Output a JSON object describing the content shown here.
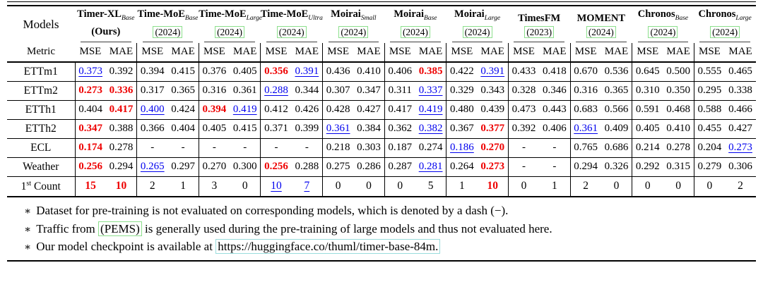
{
  "colors": {
    "best": "#EE0000",
    "second": "#0000EE",
    "cite_box": "#8CDF8C",
    "url_box": "#9ADCDC"
  },
  "table": {
    "models_label": "Models",
    "metric_label": "Metric",
    "metrics": [
      "MSE",
      "MAE"
    ],
    "columns": [
      {
        "name": "Timer-XL",
        "sub": "Base",
        "year": "(Ours)",
        "boxed": false,
        "year_bold": true
      },
      {
        "name": "Time-MoE",
        "sub": "Base",
        "year": "(2024)",
        "boxed": true,
        "year_bold": false
      },
      {
        "name": "Time-MoE",
        "sub": "Large",
        "year": "(2024)",
        "boxed": true,
        "year_bold": false
      },
      {
        "name": "Time-MoE",
        "sub": "Ultra",
        "year": "(2024)",
        "boxed": true,
        "year_bold": false
      },
      {
        "name": "Moirai",
        "sub": "Small",
        "year": "(2024)",
        "boxed": true,
        "year_bold": false
      },
      {
        "name": "Moirai",
        "sub": "Base",
        "year": "(2024)",
        "boxed": true,
        "year_bold": false
      },
      {
        "name": "Moirai",
        "sub": "Large",
        "year": "(2024)",
        "boxed": true,
        "year_bold": false
      },
      {
        "name": "TimesFM",
        "sub": "",
        "year": "(2023)",
        "boxed": true,
        "year_bold": false
      },
      {
        "name": "MOMENT",
        "sub": "",
        "year": "(2024)",
        "boxed": true,
        "year_bold": false
      },
      {
        "name": "Chronos",
        "sub": "Base",
        "year": "(2024)",
        "boxed": true,
        "year_bold": false
      },
      {
        "name": "Chronos",
        "sub": "Large",
        "year": "(2024)",
        "boxed": true,
        "year_bold": false
      }
    ],
    "rows": [
      {
        "label": "ETTm1",
        "cells": [
          [
            "0.373",
            "second"
          ],
          [
            "0.392",
            ""
          ],
          [
            "0.394",
            ""
          ],
          [
            "0.415",
            ""
          ],
          [
            "0.376",
            ""
          ],
          [
            "0.405",
            ""
          ],
          [
            "0.356",
            "best"
          ],
          [
            "0.391",
            "second"
          ],
          [
            "0.436",
            ""
          ],
          [
            "0.410",
            ""
          ],
          [
            "0.406",
            ""
          ],
          [
            "0.385",
            "best"
          ],
          [
            "0.422",
            ""
          ],
          [
            "0.391",
            "second"
          ],
          [
            "0.433",
            ""
          ],
          [
            "0.418",
            ""
          ],
          [
            "0.670",
            ""
          ],
          [
            "0.536",
            ""
          ],
          [
            "0.645",
            ""
          ],
          [
            "0.500",
            ""
          ],
          [
            "0.555",
            ""
          ],
          [
            "0.465",
            ""
          ]
        ]
      },
      {
        "label": "ETTm2",
        "cells": [
          [
            "0.273",
            "best"
          ],
          [
            "0.336",
            "best"
          ],
          [
            "0.317",
            ""
          ],
          [
            "0.365",
            ""
          ],
          [
            "0.316",
            ""
          ],
          [
            "0.361",
            ""
          ],
          [
            "0.288",
            "second"
          ],
          [
            "0.344",
            ""
          ],
          [
            "0.307",
            ""
          ],
          [
            "0.347",
            ""
          ],
          [
            "0.311",
            ""
          ],
          [
            "0.337",
            "second"
          ],
          [
            "0.329",
            ""
          ],
          [
            "0.343",
            ""
          ],
          [
            "0.328",
            ""
          ],
          [
            "0.346",
            ""
          ],
          [
            "0.316",
            ""
          ],
          [
            "0.365",
            ""
          ],
          [
            "0.310",
            ""
          ],
          [
            "0.350",
            ""
          ],
          [
            "0.295",
            ""
          ],
          [
            "0.338",
            ""
          ]
        ]
      },
      {
        "label": "ETTh1",
        "cells": [
          [
            "0.404",
            ""
          ],
          [
            "0.417",
            "best"
          ],
          [
            "0.400",
            "second"
          ],
          [
            "0.424",
            ""
          ],
          [
            "0.394",
            "best"
          ],
          [
            "0.419",
            "second"
          ],
          [
            "0.412",
            ""
          ],
          [
            "0.426",
            ""
          ],
          [
            "0.428",
            ""
          ],
          [
            "0.427",
            ""
          ],
          [
            "0.417",
            ""
          ],
          [
            "0.419",
            "second"
          ],
          [
            "0.480",
            ""
          ],
          [
            "0.439",
            ""
          ],
          [
            "0.473",
            ""
          ],
          [
            "0.443",
            ""
          ],
          [
            "0.683",
            ""
          ],
          [
            "0.566",
            ""
          ],
          [
            "0.591",
            ""
          ],
          [
            "0.468",
            ""
          ],
          [
            "0.588",
            ""
          ],
          [
            "0.466",
            ""
          ]
        ]
      },
      {
        "label": "ETTh2",
        "cells": [
          [
            "0.347",
            "best"
          ],
          [
            "0.388",
            ""
          ],
          [
            "0.366",
            ""
          ],
          [
            "0.404",
            ""
          ],
          [
            "0.405",
            ""
          ],
          [
            "0.415",
            ""
          ],
          [
            "0.371",
            ""
          ],
          [
            "0.399",
            ""
          ],
          [
            "0.361",
            "second"
          ],
          [
            "0.384",
            ""
          ],
          [
            "0.362",
            ""
          ],
          [
            "0.382",
            "second"
          ],
          [
            "0.367",
            ""
          ],
          [
            "0.377",
            "best"
          ],
          [
            "0.392",
            ""
          ],
          [
            "0.406",
            ""
          ],
          [
            "0.361",
            "second"
          ],
          [
            "0.409",
            ""
          ],
          [
            "0.405",
            ""
          ],
          [
            "0.410",
            ""
          ],
          [
            "0.455",
            ""
          ],
          [
            "0.427",
            ""
          ]
        ]
      },
      {
        "label": "ECL",
        "cells": [
          [
            "0.174",
            "best"
          ],
          [
            "0.278",
            ""
          ],
          [
            "-",
            "dash"
          ],
          [
            "-",
            "dash"
          ],
          [
            "-",
            "dash"
          ],
          [
            "-",
            "dash"
          ],
          [
            "-",
            "dash"
          ],
          [
            "-",
            "dash"
          ],
          [
            "0.218",
            ""
          ],
          [
            "0.303",
            ""
          ],
          [
            "0.187",
            ""
          ],
          [
            "0.274",
            ""
          ],
          [
            "0.186",
            "second"
          ],
          [
            "0.270",
            "best"
          ],
          [
            "-",
            "dash"
          ],
          [
            "-",
            "dash"
          ],
          [
            "0.765",
            ""
          ],
          [
            "0.686",
            ""
          ],
          [
            "0.214",
            ""
          ],
          [
            "0.278",
            ""
          ],
          [
            "0.204",
            ""
          ],
          [
            "0.273",
            "second"
          ]
        ]
      },
      {
        "label": "Weather",
        "cells": [
          [
            "0.256",
            "best"
          ],
          [
            "0.294",
            ""
          ],
          [
            "0.265",
            "second"
          ],
          [
            "0.297",
            ""
          ],
          [
            "0.270",
            ""
          ],
          [
            "0.300",
            ""
          ],
          [
            "0.256",
            "best"
          ],
          [
            "0.288",
            ""
          ],
          [
            "0.275",
            ""
          ],
          [
            "0.286",
            ""
          ],
          [
            "0.287",
            ""
          ],
          [
            "0.281",
            "second"
          ],
          [
            "0.264",
            ""
          ],
          [
            "0.273",
            "best"
          ],
          [
            "-",
            "dash"
          ],
          [
            "-",
            "dash"
          ],
          [
            "0.294",
            ""
          ],
          [
            "0.326",
            ""
          ],
          [
            "0.292",
            ""
          ],
          [
            "0.315",
            ""
          ],
          [
            "0.279",
            ""
          ],
          [
            "0.306",
            ""
          ]
        ]
      }
    ],
    "count_row": {
      "label_pre": "1",
      "label_sup": "st",
      "label_post": " Count",
      "cells": [
        [
          "15",
          "best"
        ],
        [
          "10",
          "best"
        ],
        [
          "2",
          ""
        ],
        [
          "1",
          ""
        ],
        [
          "3",
          ""
        ],
        [
          "0",
          ""
        ],
        [
          "10",
          "second"
        ],
        [
          "7",
          "second"
        ],
        [
          "0",
          ""
        ],
        [
          "0",
          ""
        ],
        [
          "0",
          ""
        ],
        [
          "5",
          ""
        ],
        [
          "1",
          ""
        ],
        [
          "10",
          "best"
        ],
        [
          "0",
          ""
        ],
        [
          "1",
          ""
        ],
        [
          "2",
          ""
        ],
        [
          "0",
          ""
        ],
        [
          "0",
          ""
        ],
        [
          "0",
          ""
        ],
        [
          "0",
          ""
        ],
        [
          "2",
          ""
        ]
      ]
    }
  },
  "footnotes": [
    {
      "marker": "∗",
      "pre": "Dataset for pre-training is not evaluated on corresponding models, which is denoted by a dash (−).",
      "boxed": "",
      "post": "",
      "box_type": ""
    },
    {
      "marker": "∗",
      "pre": "Traffic from ",
      "boxed": "(PEMS)",
      "post": " is generally used during the pre-training of large models and thus not evaluated here.",
      "box_type": "green"
    },
    {
      "marker": "∗",
      "pre": "Our model checkpoint is available at ",
      "boxed": "https://huggingface.co/thuml/timer-base-84m.",
      "post": "",
      "box_type": "cyan"
    }
  ]
}
